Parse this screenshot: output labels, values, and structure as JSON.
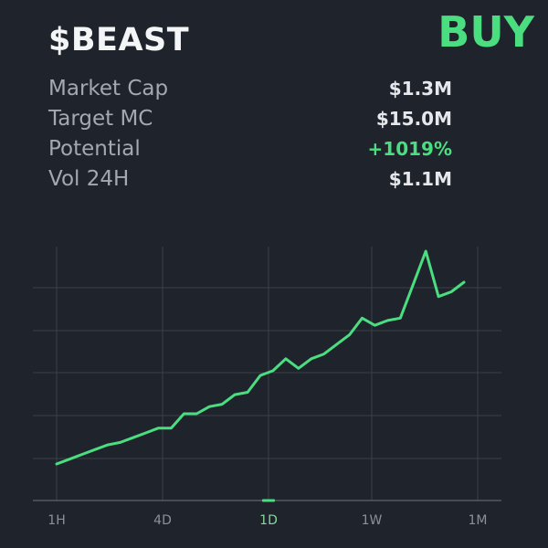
{
  "header": {
    "ticker": "$BEAST",
    "action_label": "BUY"
  },
  "stats": [
    {
      "label": "Market Cap",
      "value": "$1.3M",
      "positive": false
    },
    {
      "label": "Target MC",
      "value": "$15.0M",
      "positive": false
    },
    {
      "label": "Potential",
      "value": "+1019%",
      "positive": true
    },
    {
      "label": "Vol 24H",
      "value": "$1.1M",
      "positive": false
    }
  ],
  "colors": {
    "background": "#1f232b",
    "accent": "#4ade80",
    "grid": "#3a3f48",
    "axis": "#555a63"
  },
  "chart_data": {
    "type": "line",
    "x_tick_labels": [
      "1H",
      "4D",
      "1D",
      "1W",
      "1M"
    ],
    "active_tick": "1D",
    "grid": true,
    "series": [
      {
        "values": [
          0.0,
          0.02,
          0.04,
          0.06,
          0.08,
          0.09,
          0.11,
          0.13,
          0.15,
          0.15,
          0.21,
          0.21,
          0.24,
          0.25,
          0.29,
          0.3,
          0.37,
          0.39,
          0.44,
          0.4,
          0.44,
          0.46,
          0.5,
          0.54,
          0.61,
          0.58,
          0.6,
          0.61,
          0.75,
          0.89,
          0.7,
          0.72,
          0.76
        ]
      }
    ]
  }
}
